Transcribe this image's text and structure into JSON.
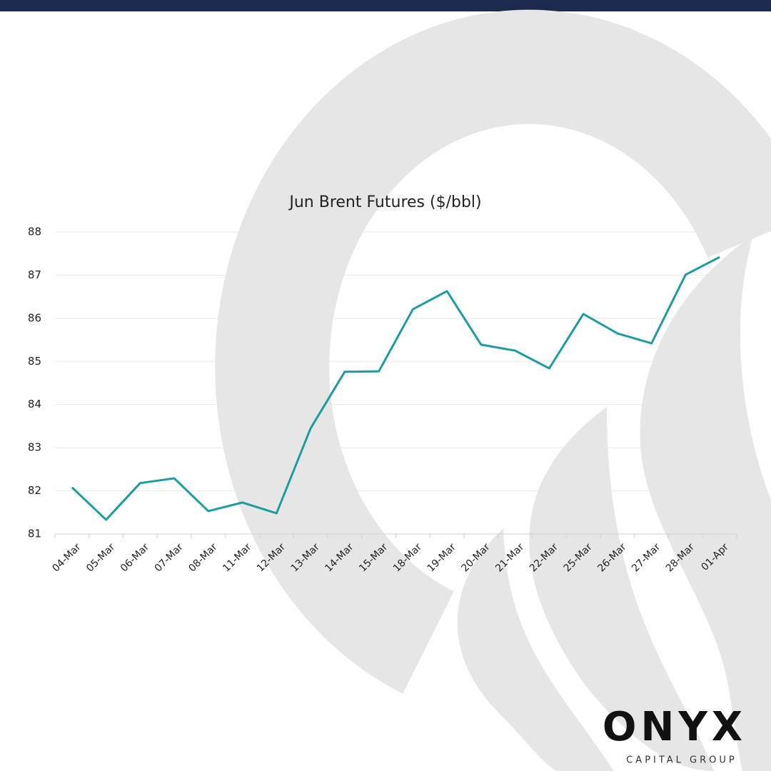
{
  "chart_data": {
    "type": "line",
    "title": "Jun Brent Futures ($/bbl)",
    "categories": [
      "04-Mar",
      "05-Mar",
      "06-Mar",
      "07-Mar",
      "08-Mar",
      "11-Mar",
      "12-Mar",
      "13-Mar",
      "14-Mar",
      "15-Mar",
      "18-Mar",
      "19-Mar",
      "20-Mar",
      "21-Mar",
      "22-Mar",
      "25-Mar",
      "26-Mar",
      "27-Mar",
      "28-Mar",
      "01-Apr"
    ],
    "values": [
      82.08,
      81.33,
      82.18,
      82.29,
      81.53,
      81.73,
      81.48,
      83.45,
      84.76,
      84.77,
      86.21,
      86.63,
      85.39,
      85.25,
      84.84,
      86.1,
      85.65,
      85.42,
      87.01,
      87.42
    ],
    "color": "#1f9c9c",
    "ylim": [
      81,
      88
    ],
    "yticks": [
      81,
      82,
      83,
      84,
      85,
      86,
      87,
      88
    ],
    "grid": true
  },
  "logo": {
    "name": "ONYX",
    "tagline": "CAPITAL GROUP"
  }
}
